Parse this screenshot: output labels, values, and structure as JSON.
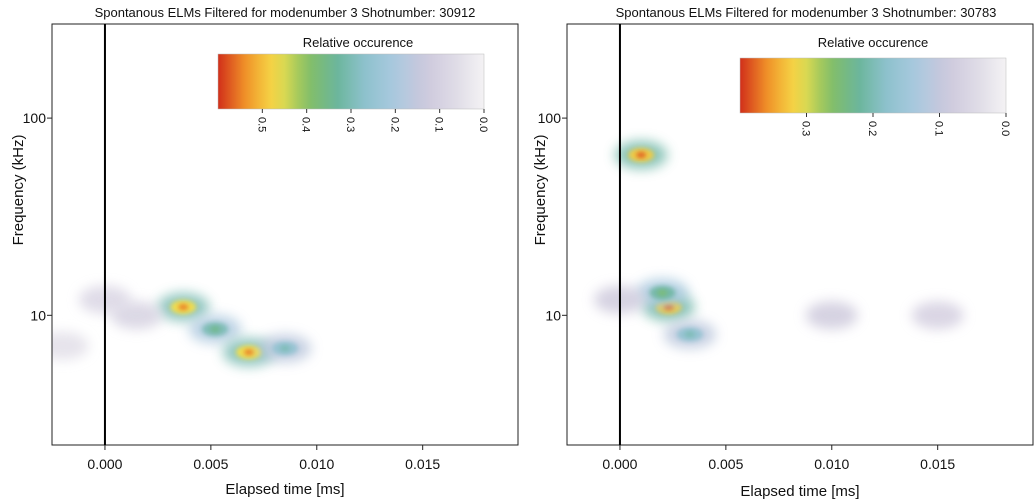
{
  "chart_data": [
    {
      "type": "heatmap",
      "title": "Spontanous ELMs Filtered for modenumber 3 Shotnumber: 30912",
      "xlabel": "Elapsed time [ms]",
      "ylabel": "Frequency (kHz)",
      "xlim": [
        -0.0025,
        0.0195
      ],
      "ylim": [
        2.2,
        300
      ],
      "yscale": "log",
      "xticks": [
        0.0,
        0.005,
        0.01,
        0.015
      ],
      "xtick_labels": [
        "0.000",
        "0.005",
        "0.010",
        "0.015"
      ],
      "yticks": [
        10,
        100
      ],
      "ytick_labels": [
        "10",
        "100"
      ],
      "vline_x": 0.0,
      "colorbar": {
        "title": "Relative occurence",
        "vmin": 0.0,
        "vmax": 0.6,
        "ticks": [
          0.5,
          0.4,
          0.3,
          0.2,
          0.1,
          0.0
        ],
        "tick_labels": [
          "0.5",
          "0.4",
          "0.3",
          "0.2",
          "0.1",
          "0.0"
        ],
        "orientation": "reversed"
      },
      "hotspots": [
        {
          "x": 0.0037,
          "y": 11,
          "value": 0.55
        },
        {
          "x": 0.0052,
          "y": 8.5,
          "value": 0.35
        },
        {
          "x": 0.0068,
          "y": 6.5,
          "value": 0.55
        },
        {
          "x": 0.0085,
          "y": 6.8,
          "value": 0.3
        },
        {
          "x": 0.0015,
          "y": 10,
          "value": 0.18
        },
        {
          "x": 0.0,
          "y": 12,
          "value": 0.15
        },
        {
          "x": -0.002,
          "y": 7,
          "value": 0.1
        }
      ]
    },
    {
      "type": "heatmap",
      "title": "Spontanous ELMs Filtered for modenumber 3 Shotnumber: 30783",
      "xlabel": "Elapsed time [ms]",
      "ylabel": "Frequency (kHz)",
      "xlim": [
        -0.0025,
        0.0195
      ],
      "ylim": [
        2.2,
        300
      ],
      "yscale": "log",
      "xticks": [
        0.0,
        0.005,
        0.01,
        0.015
      ],
      "xtick_labels": [
        "0.000",
        "0.005",
        "0.010",
        "0.015"
      ],
      "yticks": [
        10,
        100
      ],
      "ytick_labels": [
        "10",
        "100"
      ],
      "vline_x": 0.0,
      "colorbar": {
        "title": "Relative occurence",
        "vmin": 0.0,
        "vmax": 0.4,
        "ticks": [
          0.3,
          0.2,
          0.1,
          0.0
        ],
        "tick_labels": [
          "0.3",
          "0.2",
          "0.1",
          "0.0"
        ],
        "orientation": "reversed"
      },
      "hotspots": [
        {
          "x": 0.001,
          "y": 65,
          "value": 0.38
        },
        {
          "x": 0.0023,
          "y": 11,
          "value": 0.38
        },
        {
          "x": 0.002,
          "y": 13,
          "value": 0.25
        },
        {
          "x": 0.0033,
          "y": 8,
          "value": 0.2
        },
        {
          "x": 0.01,
          "y": 10,
          "value": 0.15
        },
        {
          "x": 0.015,
          "y": 10,
          "value": 0.13
        },
        {
          "x": 0.0,
          "y": 12,
          "value": 0.15
        }
      ]
    }
  ],
  "colors": {
    "colormap": [
      "#f4f2f4",
      "#dedbe6",
      "#cdc8dc",
      "#aac9df",
      "#8fc2cf",
      "#6ab59a",
      "#86c063",
      "#f4e04c",
      "#f29a2a",
      "#d12f1a"
    ],
    "background": "#ffffff",
    "axis": "#111111"
  }
}
